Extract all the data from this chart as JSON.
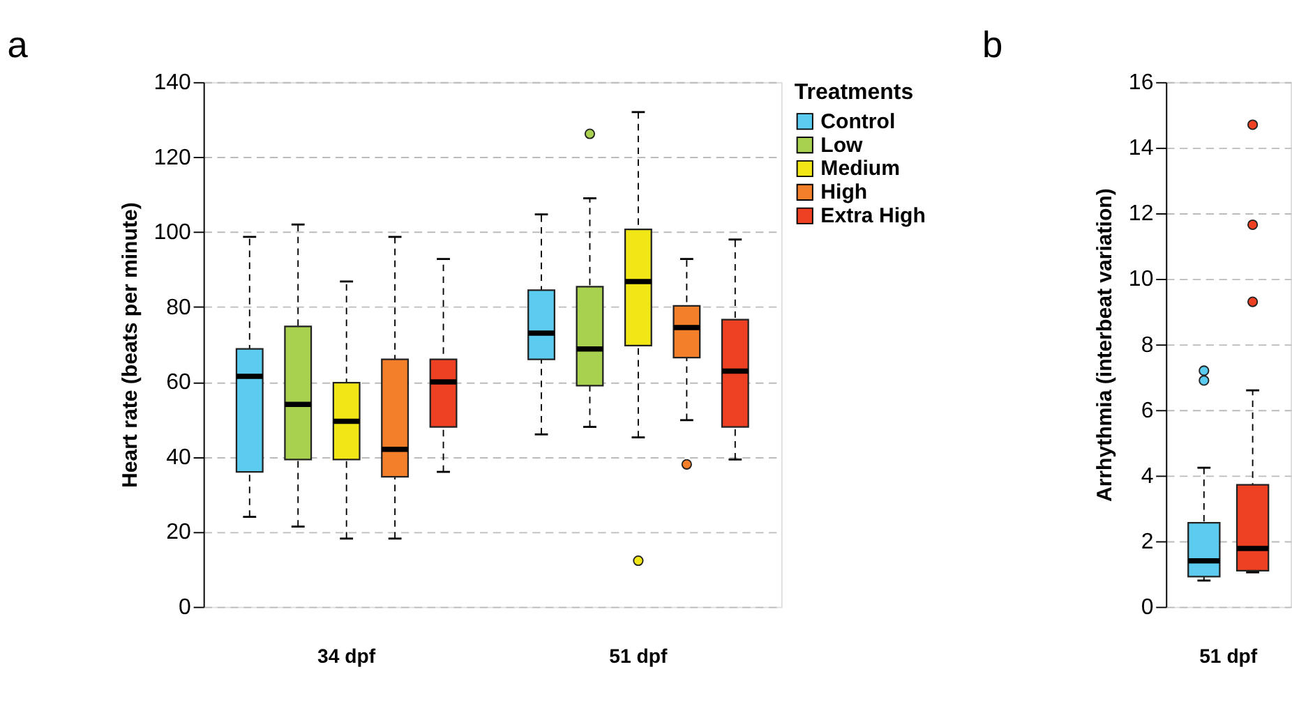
{
  "chart_data": [
    {
      "type": "box",
      "annotations": [
        "a"
      ],
      "ylabel": "Heart rate (beats per minute)",
      "categories": [
        "34 dpf",
        "51 dpf"
      ],
      "ylim": [
        0,
        140
      ],
      "yticks": [
        0,
        20,
        40,
        60,
        80,
        100,
        120,
        140
      ],
      "grid": "y",
      "legend": "right",
      "legend_title": "Treatments",
      "series": [
        {
          "name": "Control",
          "color": "#5bcbf0",
          "boxes": [
            {
              "low": 24,
              "q1": 36,
              "median": 61.5,
              "q3": 68.8,
              "high": 98.7
            },
            {
              "low": 46,
              "q1": 66,
              "median": 73,
              "q3": 84.5,
              "high": 104.7
            }
          ]
        },
        {
          "name": "Low",
          "color": "#a8d14f",
          "boxes": [
            {
              "low": 21.4,
              "q1": 39.3,
              "median": 54,
              "q3": 74.8,
              "high": 102
            },
            {
              "low": 48,
              "q1": 59,
              "median": 68.8,
              "q3": 85.4,
              "high": 109,
              "outliers": [
                126.2
              ]
            }
          ]
        },
        {
          "name": "Medium",
          "color": "#f2e716",
          "boxes": [
            {
              "low": 18.2,
              "q1": 39.3,
              "median": 49.5,
              "q3": 59.8,
              "high": 86.8
            },
            {
              "low": 45.2,
              "q1": 69.7,
              "median": 86.8,
              "q3": 100.7,
              "high": 132,
              "outliers": [
                12.3
              ]
            }
          ]
        },
        {
          "name": "High",
          "color": "#f47f2a",
          "boxes": [
            {
              "low": 18.2,
              "q1": 34.7,
              "median": 42,
              "q3": 66,
              "high": 98.7
            },
            {
              "low": 49.8,
              "q1": 66.5,
              "median": 74.5,
              "q3": 80.3,
              "high": 92.8,
              "outliers": [
                38
              ]
            }
          ]
        },
        {
          "name": "Extra High",
          "color": "#ee4023",
          "boxes": [
            {
              "low": 36,
              "q1": 48,
              "median": 60,
              "q3": 66,
              "high": 92.8
            },
            {
              "low": 39.3,
              "q1": 48,
              "median": 62.9,
              "q3": 76.6,
              "high": 98
            }
          ]
        }
      ]
    },
    {
      "type": "box",
      "annotations": [
        "b"
      ],
      "ylabel": "Arrhythmia (interbeat variation)",
      "categories": [
        "51 dpf"
      ],
      "ylim": [
        0,
        16
      ],
      "yticks": [
        0,
        2,
        4,
        6,
        8,
        10,
        12,
        14,
        16
      ],
      "grid": "y",
      "series": [
        {
          "color": "#5bcbf0",
          "boxes": [
            {
              "low": 0.8,
              "q1": 0.92,
              "median": 1.4,
              "q3": 2.56,
              "high": 4.24,
              "outliers": [
                6.9,
                7.2
              ]
            }
          ]
        },
        {
          "color": "#ee4023",
          "boxes": [
            {
              "low": 1.05,
              "q1": 1.1,
              "median": 1.78,
              "q3": 3.72,
              "high": 6.6,
              "outliers": [
                9.3,
                11.65,
                14.7
              ]
            }
          ]
        }
      ]
    }
  ]
}
